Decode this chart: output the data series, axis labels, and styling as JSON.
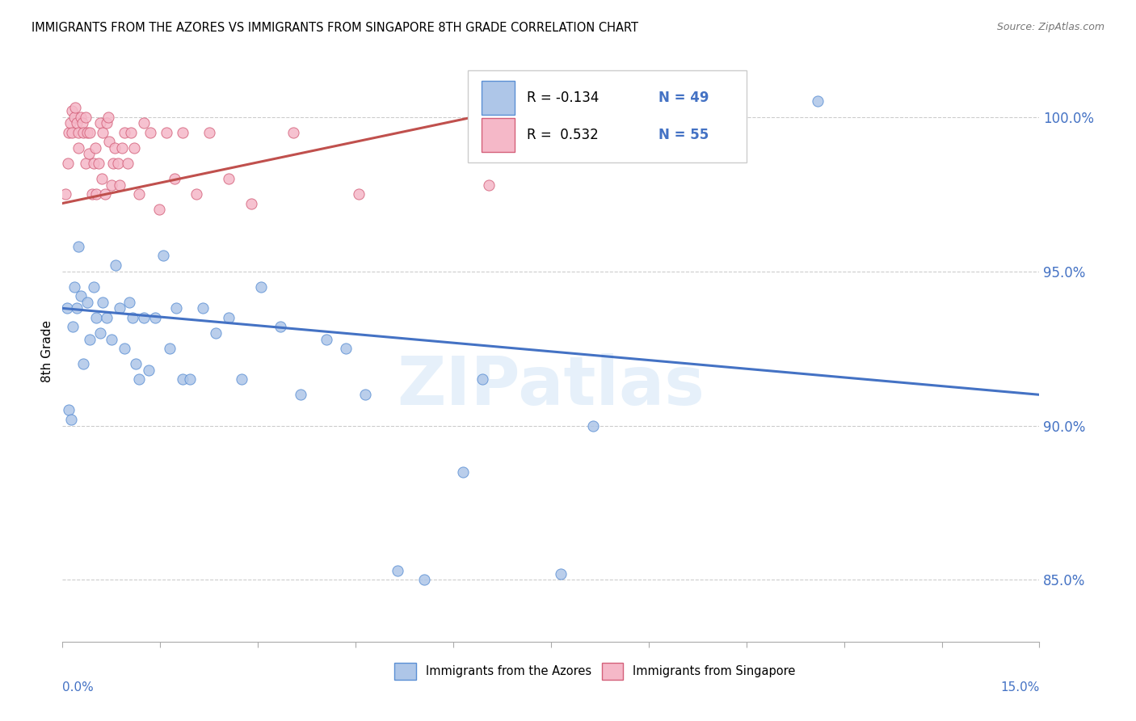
{
  "title": "IMMIGRANTS FROM THE AZORES VS IMMIGRANTS FROM SINGAPORE 8TH GRADE CORRELATION CHART",
  "source": "Source: ZipAtlas.com",
  "ylabel": "8th Grade",
  "xlim": [
    0.0,
    15.0
  ],
  "ylim": [
    83.0,
    101.8
  ],
  "watermark": "ZIPatlas",
  "legend_r_azores": "-0.134",
  "legend_n_azores": "49",
  "legend_r_singapore": "0.532",
  "legend_n_singapore": "55",
  "color_azores_fill": "#aec6e8",
  "color_azores_edge": "#5b8fd4",
  "color_singapore_fill": "#f5b8c8",
  "color_singapore_edge": "#d4607a",
  "color_azores_line": "#4472c4",
  "color_singapore_line": "#c0504d",
  "color_axis_blue": "#4472c4",
  "yticks": [
    85.0,
    90.0,
    95.0,
    100.0
  ],
  "ytick_labels": [
    "85.0%",
    "90.0%",
    "95.0%",
    "100.0%"
  ],
  "azores_x": [
    0.07,
    0.1,
    0.13,
    0.16,
    0.18,
    0.22,
    0.25,
    0.28,
    0.32,
    0.38,
    0.42,
    0.48,
    0.52,
    0.58,
    0.62,
    0.68,
    0.75,
    0.82,
    0.88,
    0.95,
    1.02,
    1.08,
    1.12,
    1.18,
    1.25,
    1.32,
    1.42,
    1.55,
    1.65,
    1.75,
    1.85,
    1.95,
    2.15,
    2.35,
    2.55,
    2.75,
    3.05,
    3.35,
    3.65,
    4.05,
    4.35,
    4.65,
    5.15,
    5.55,
    6.15,
    6.45,
    7.65,
    8.15,
    11.6
  ],
  "azores_y": [
    93.8,
    90.5,
    90.2,
    93.2,
    94.5,
    93.8,
    95.8,
    94.2,
    92.0,
    94.0,
    92.8,
    94.5,
    93.5,
    93.0,
    94.0,
    93.5,
    92.8,
    95.2,
    93.8,
    92.5,
    94.0,
    93.5,
    92.0,
    91.5,
    93.5,
    91.8,
    93.5,
    95.5,
    92.5,
    93.8,
    91.5,
    91.5,
    93.8,
    93.0,
    93.5,
    91.5,
    94.5,
    93.2,
    91.0,
    92.8,
    92.5,
    91.0,
    85.3,
    85.0,
    88.5,
    91.5,
    85.2,
    90.0,
    100.5
  ],
  "singapore_x": [
    0.05,
    0.08,
    0.1,
    0.12,
    0.15,
    0.15,
    0.18,
    0.2,
    0.22,
    0.25,
    0.25,
    0.28,
    0.3,
    0.32,
    0.35,
    0.35,
    0.38,
    0.4,
    0.42,
    0.45,
    0.48,
    0.5,
    0.52,
    0.55,
    0.58,
    0.6,
    0.62,
    0.65,
    0.68,
    0.7,
    0.72,
    0.75,
    0.78,
    0.8,
    0.85,
    0.88,
    0.92,
    0.95,
    1.0,
    1.05,
    1.1,
    1.18,
    1.25,
    1.35,
    1.48,
    1.6,
    1.72,
    1.85,
    2.05,
    2.25,
    2.55,
    2.9,
    3.55,
    4.55,
    6.55
  ],
  "singapore_y": [
    97.5,
    98.5,
    99.5,
    99.8,
    100.2,
    99.5,
    100.0,
    100.3,
    99.8,
    99.5,
    99.0,
    100.0,
    99.8,
    99.5,
    100.0,
    98.5,
    99.5,
    98.8,
    99.5,
    97.5,
    98.5,
    99.0,
    97.5,
    98.5,
    99.8,
    98.0,
    99.5,
    97.5,
    99.8,
    100.0,
    99.2,
    97.8,
    98.5,
    99.0,
    98.5,
    97.8,
    99.0,
    99.5,
    98.5,
    99.5,
    99.0,
    97.5,
    99.8,
    99.5,
    97.0,
    99.5,
    98.0,
    99.5,
    97.5,
    99.5,
    98.0,
    97.2,
    99.5,
    97.5,
    97.8
  ],
  "azores_trend_x": [
    0.0,
    15.0
  ],
  "azores_trend_y": [
    93.8,
    91.0
  ],
  "singapore_trend_x": [
    0.0,
    7.0
  ],
  "singapore_trend_y": [
    97.2,
    100.3
  ]
}
